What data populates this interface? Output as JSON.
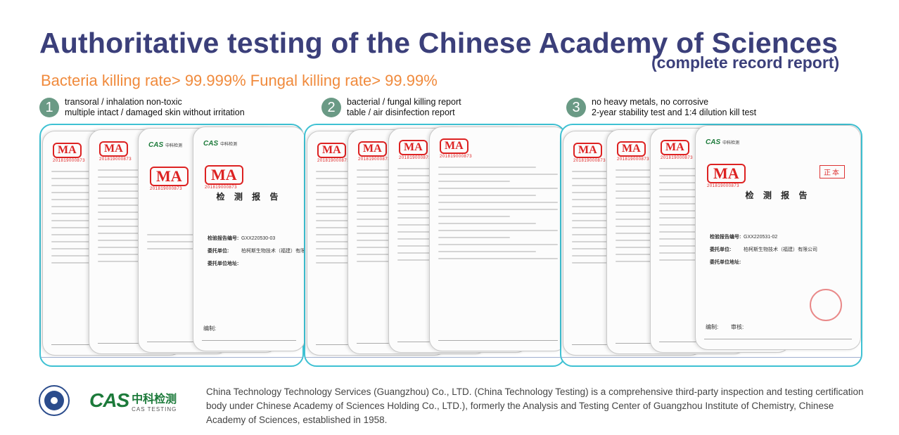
{
  "header": {
    "title": "Authoritative testing of the Chinese Academy of Sciences",
    "subtitle": "(complete record report)",
    "headline": "Bacteria killing rate> 99.999% Fungal killing rate> 99.99%"
  },
  "steps": [
    {
      "num": "1",
      "line1": "transoral / inhalation non-toxic",
      "line2": "multiple intact / damaged skin without irritation"
    },
    {
      "num": "2",
      "line1": "bacterial / fungal killing report",
      "line2": "table / air disinfection report"
    },
    {
      "num": "3",
      "line1": "no heavy metals, no corrosive",
      "line2": "2-year stability test and 1:4 dilution kill test"
    }
  ],
  "docs": {
    "ma": "MA",
    "ma_number": "201819000873",
    "cas_short": "CAS",
    "cas_cn": "中科检测",
    "report_title": "检 测 报 告",
    "copy_mark": "正本",
    "report_no_label": "检验报告编号:",
    "report_no_1": "GXX220530-03",
    "report_no_2": "GXX220531-02",
    "client_label": "委托单位:",
    "client_value": "柏柯斯生物技术（福建）有限公司",
    "address_label": "委托单位地址:",
    "compiler_label": "编制:",
    "approver_label": "审核:"
  },
  "footer": {
    "logo_word": "CAS",
    "logo_cn": "中科检测",
    "logo_en": "CAS TESTING",
    "text": "China Technology Technology Services (Guangzhou) Co., LTD. (China Technology Testing) is a comprehensive third-party inspection and testing certification body under Chinese Academy of Sciences Holding Co., LTD.), formerly the Analysis and Testing Center of Guangzhou Institute of Chemistry, Chinese Academy of Sciences, established in 1958."
  },
  "colors": {
    "title": "#3b3f7a",
    "headline": "#f08a3c",
    "step_badge": "#6a9a85",
    "band_border": "#3ec1d3",
    "cas_green": "#1c7a3a",
    "ma_red": "#dd2222"
  }
}
